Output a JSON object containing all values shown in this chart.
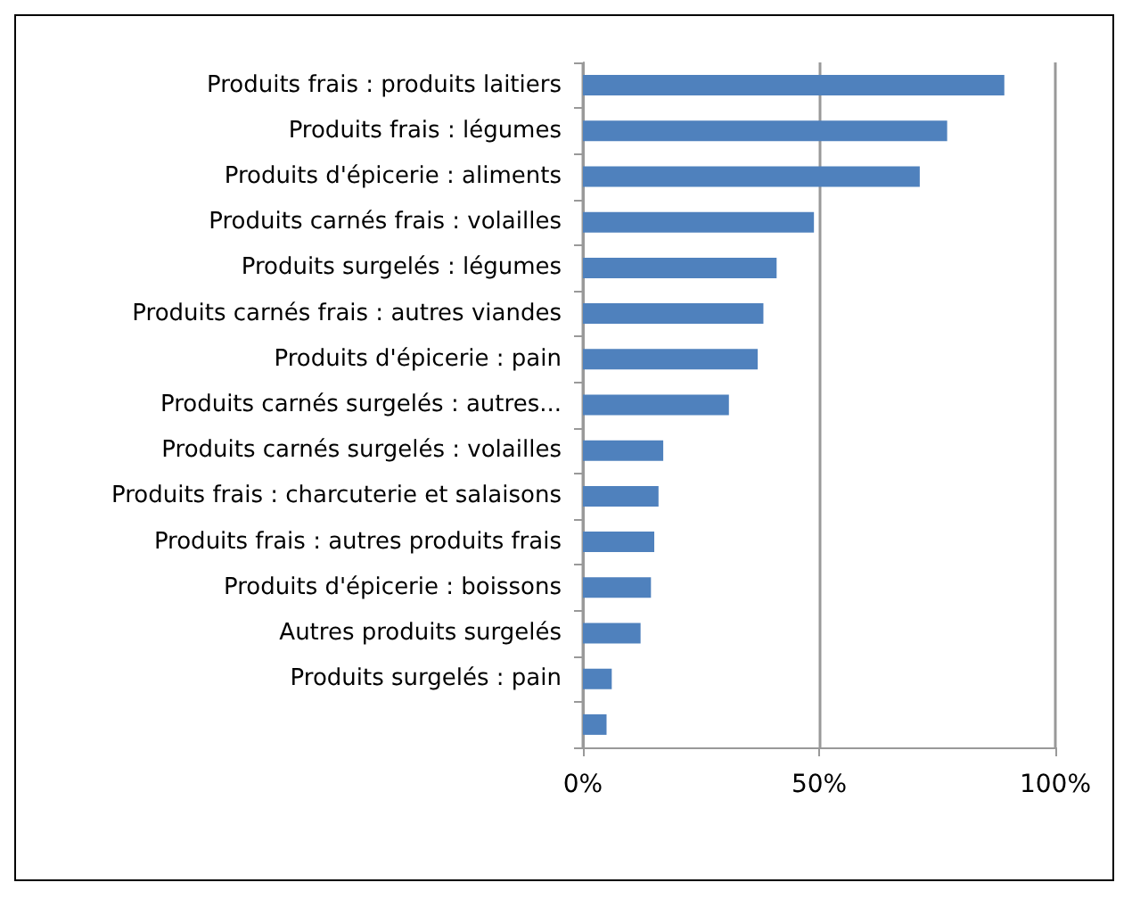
{
  "chart_data": {
    "type": "bar",
    "orientation": "horizontal",
    "categories": [
      "Produits frais : produits laitiers",
      "Produits frais : légumes",
      "Produits d'épicerie : aliments",
      "Produits carnés frais : volailles",
      "Produits surgelés : légumes",
      "Produits carnés frais : autres viandes",
      "Produits d'épicerie : pain",
      "Produits carnés surgelés : autres...",
      "Produits carnés surgelés : volailles",
      "Produits frais : charcuterie et salaisons",
      "Produits frais : autres produits frais",
      "Produits d'épicerie : boissons",
      "Autres produits surgelés",
      "Produits surgelés : pain",
      null
    ],
    "values": [
      89.2,
      77.1,
      71.3,
      48.9,
      41.0,
      38.2,
      37.0,
      30.9,
      17.0,
      16.0,
      15.1,
      14.4,
      12.2,
      6.1,
      5.0
    ],
    "color": "#4f81bd",
    "xlim": [
      0,
      100
    ],
    "xticks": [
      {
        "value": 0,
        "label": "0%"
      },
      {
        "value": 50,
        "label": "50%"
      },
      {
        "value": 100,
        "label": "100%"
      }
    ],
    "grid": "x"
  }
}
